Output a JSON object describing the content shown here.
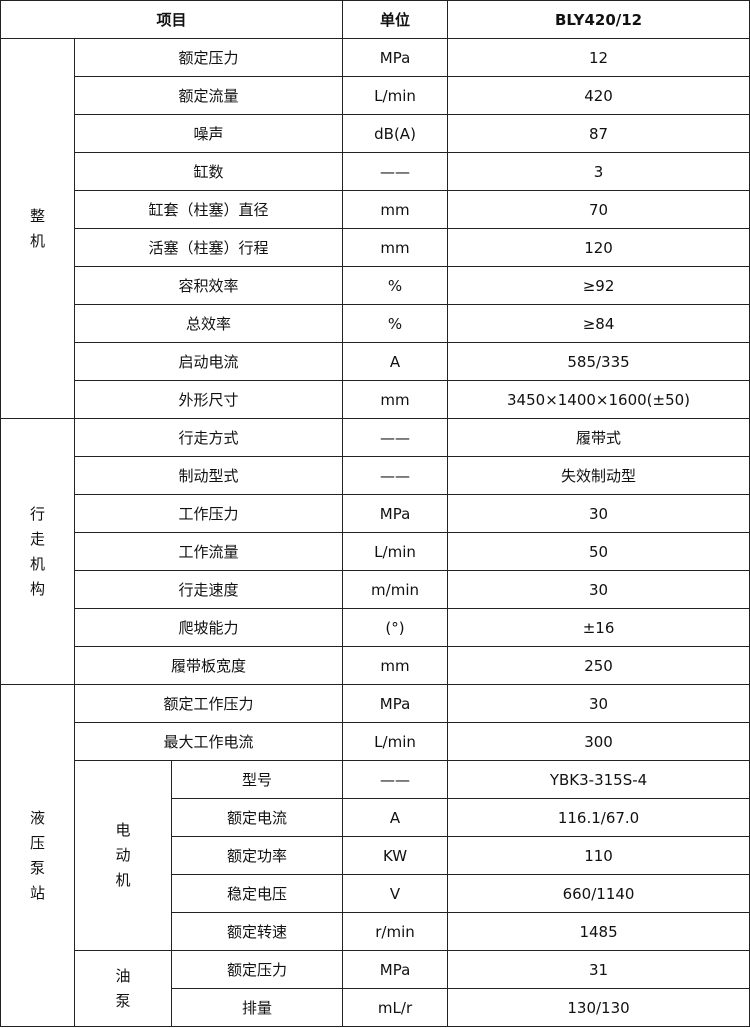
{
  "header": {
    "item": "项目",
    "unit": "单位",
    "model": "BLY420/12"
  },
  "groups": [
    {
      "label_chars": [
        "整",
        "机"
      ],
      "rows": [
        {
          "item": "额定压力",
          "unit": "MPa",
          "value": "12"
        },
        {
          "item": "额定流量",
          "unit": "L/min",
          "value": "420"
        },
        {
          "item": "噪声",
          "unit": "dB(A)",
          "value": "87"
        },
        {
          "item": "缸数",
          "unit": "——",
          "value": "3"
        },
        {
          "item": "缸套（柱塞）直径",
          "unit": "mm",
          "value": "70"
        },
        {
          "item": "活塞（柱塞）行程",
          "unit": "mm",
          "value": "120"
        },
        {
          "item": "容积效率",
          "unit": "%",
          "value": "≥92"
        },
        {
          "item": "总效率",
          "unit": "%",
          "value": "≥84"
        },
        {
          "item": "启动电流",
          "unit": "A",
          "value": "585/335"
        },
        {
          "item": "外形尺寸",
          "unit": "mm",
          "value": "3450×1400×1600(±50)"
        }
      ]
    },
    {
      "label_chars": [
        "行",
        "走",
        "机",
        "构"
      ],
      "rows": [
        {
          "item": "行走方式",
          "unit": "——",
          "value": "履带式"
        },
        {
          "item": "制动型式",
          "unit": "——",
          "value": "失效制动型"
        },
        {
          "item": "工作压力",
          "unit": "MPa",
          "value": "30"
        },
        {
          "item": "工作流量",
          "unit": "L/min",
          "value": "50"
        },
        {
          "item": "行走速度",
          "unit": "m/min",
          "value": "30"
        },
        {
          "item": "爬坡能力",
          "unit": "(°)",
          "value": "±16"
        },
        {
          "item": "履带板宽度",
          "unit": "mm",
          "value": "250"
        }
      ]
    },
    {
      "label_chars": [
        "液",
        "压",
        "泵",
        "站"
      ],
      "rows": [
        {
          "item": "额定工作压力",
          "unit": "MPa",
          "value": "30"
        },
        {
          "item": "最大工作电流",
          "unit": "L/min",
          "value": "300"
        }
      ],
      "motor": {
        "label_chars": [
          "电",
          "动",
          "机"
        ],
        "rows": [
          {
            "item": "型号",
            "unit": "——",
            "value": "YBK3-315S-4"
          },
          {
            "item": "额定电流",
            "unit": "A",
            "value": "116.1/67.0"
          },
          {
            "item": "额定功率",
            "unit": "KW",
            "value": "110"
          },
          {
            "item": "稳定电压",
            "unit": "V",
            "value": "660/1140"
          },
          {
            "item": "额定转速",
            "unit": "r/min",
            "value": "1485"
          }
        ]
      },
      "pump": {
        "label_chars": [
          "油",
          "泵"
        ],
        "rows": [
          {
            "item": "额定压力",
            "unit": "MPa",
            "value": "31"
          },
          {
            "item": "排量",
            "unit": "mL/r",
            "value": "130/130"
          }
        ]
      }
    }
  ]
}
